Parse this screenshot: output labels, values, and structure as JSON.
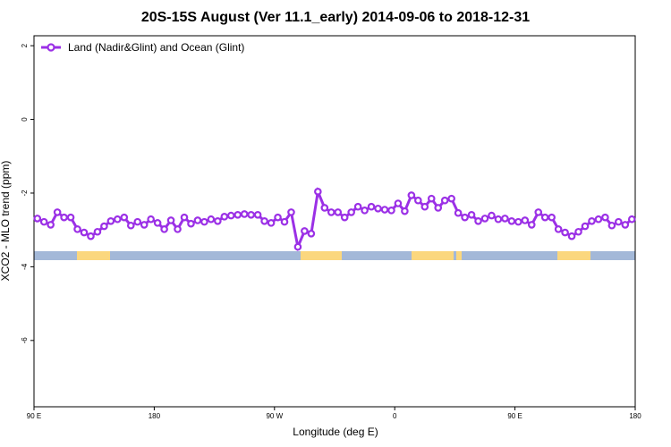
{
  "chart_data": {
    "type": "line",
    "title": "20S-15S August (Ver 11.1_early)   2014-09-06 to 2018-12-31",
    "x_label": "Longitude (deg E)",
    "y_label": "XCO2 - MLO trend (ppm)",
    "xlim": [
      90,
      540
    ],
    "xticks": [
      {
        "value": 90,
        "label": "90 E"
      },
      180,
      {
        "value": 270,
        "label": "90 W"
      },
      {
        "value": 360,
        "label": "0"
      },
      {
        "value": 450,
        "label": "90 E"
      },
      {
        "value": 540,
        "label": "180"
      }
    ],
    "ylim": [
      -7.8,
      2.27
    ],
    "yticks": [
      2,
      0,
      -2,
      -4,
      -6
    ],
    "legend": "top-left",
    "x": [
      92.5,
      97.5,
      102.5,
      107.5,
      112.5,
      117.5,
      122.5,
      127.5,
      132.5,
      137.5,
      142.5,
      147.5,
      152.5,
      157.5,
      162.5,
      167.5,
      172.5,
      177.5,
      182.5,
      187.5,
      192.5,
      197.5,
      202.5,
      207.5,
      212.5,
      217.5,
      222.5,
      227.5,
      232.5,
      237.5,
      242.5,
      247.5,
      252.5,
      257.5,
      262.5,
      267.5,
      272.5,
      277.5,
      282.5,
      287.5,
      292.5,
      297.5,
      302.5,
      307.5,
      312.5,
      317.5,
      322.5,
      327.5,
      332.5,
      337.5,
      342.5,
      347.5,
      352.5,
      357.5,
      362.5,
      367.5,
      372.5,
      377.5,
      382.5,
      387.5,
      392.5,
      397.5,
      402.5,
      407.5,
      412.5,
      417.5,
      422.5,
      427.5,
      432.5,
      437.5,
      442.5,
      447.5,
      452.5,
      457.5,
      462.5,
      467.5,
      472.5,
      477.5,
      482.5,
      487.5,
      492.5,
      497.5,
      502.5,
      507.5,
      512.5,
      517.5,
      522.5,
      527.5,
      532.5,
      537.5
    ],
    "series": [
      {
        "name": "Land (Nadir&Glint) and Ocean (Glint)",
        "color": "#9b30e6",
        "values": [
          -2.69,
          -2.78,
          -2.86,
          -2.52,
          -2.66,
          -2.66,
          -2.98,
          -3.07,
          -3.17,
          -3.05,
          -2.9,
          -2.76,
          -2.71,
          -2.66,
          -2.88,
          -2.78,
          -2.86,
          -2.71,
          -2.81,
          -2.98,
          -2.74,
          -2.98,
          -2.66,
          -2.83,
          -2.74,
          -2.78,
          -2.71,
          -2.76,
          -2.64,
          -2.61,
          -2.59,
          -2.57,
          -2.59,
          -2.59,
          -2.76,
          -2.81,
          -2.66,
          -2.78,
          -2.52,
          -3.46,
          -3.03,
          -3.1,
          -1.96,
          -2.4,
          -2.52,
          -2.52,
          -2.66,
          -2.52,
          -2.37,
          -2.47,
          -2.37,
          -2.42,
          -2.45,
          -2.47,
          -2.28,
          -2.49,
          -2.06,
          -2.2,
          -2.37,
          -2.15,
          -2.4,
          -2.2,
          -2.15,
          -2.54,
          -2.66,
          -2.59,
          -2.76,
          -2.69,
          -2.61,
          -2.71,
          -2.69,
          -2.76,
          -2.78,
          -2.74,
          -2.86,
          -2.52,
          -2.66,
          -2.66,
          -2.98,
          -3.07,
          -3.17,
          -3.05,
          -2.9,
          -2.76,
          -2.71,
          -2.66,
          -2.88,
          -2.78,
          -2.86,
          -2.71
        ]
      }
    ]
  }
}
